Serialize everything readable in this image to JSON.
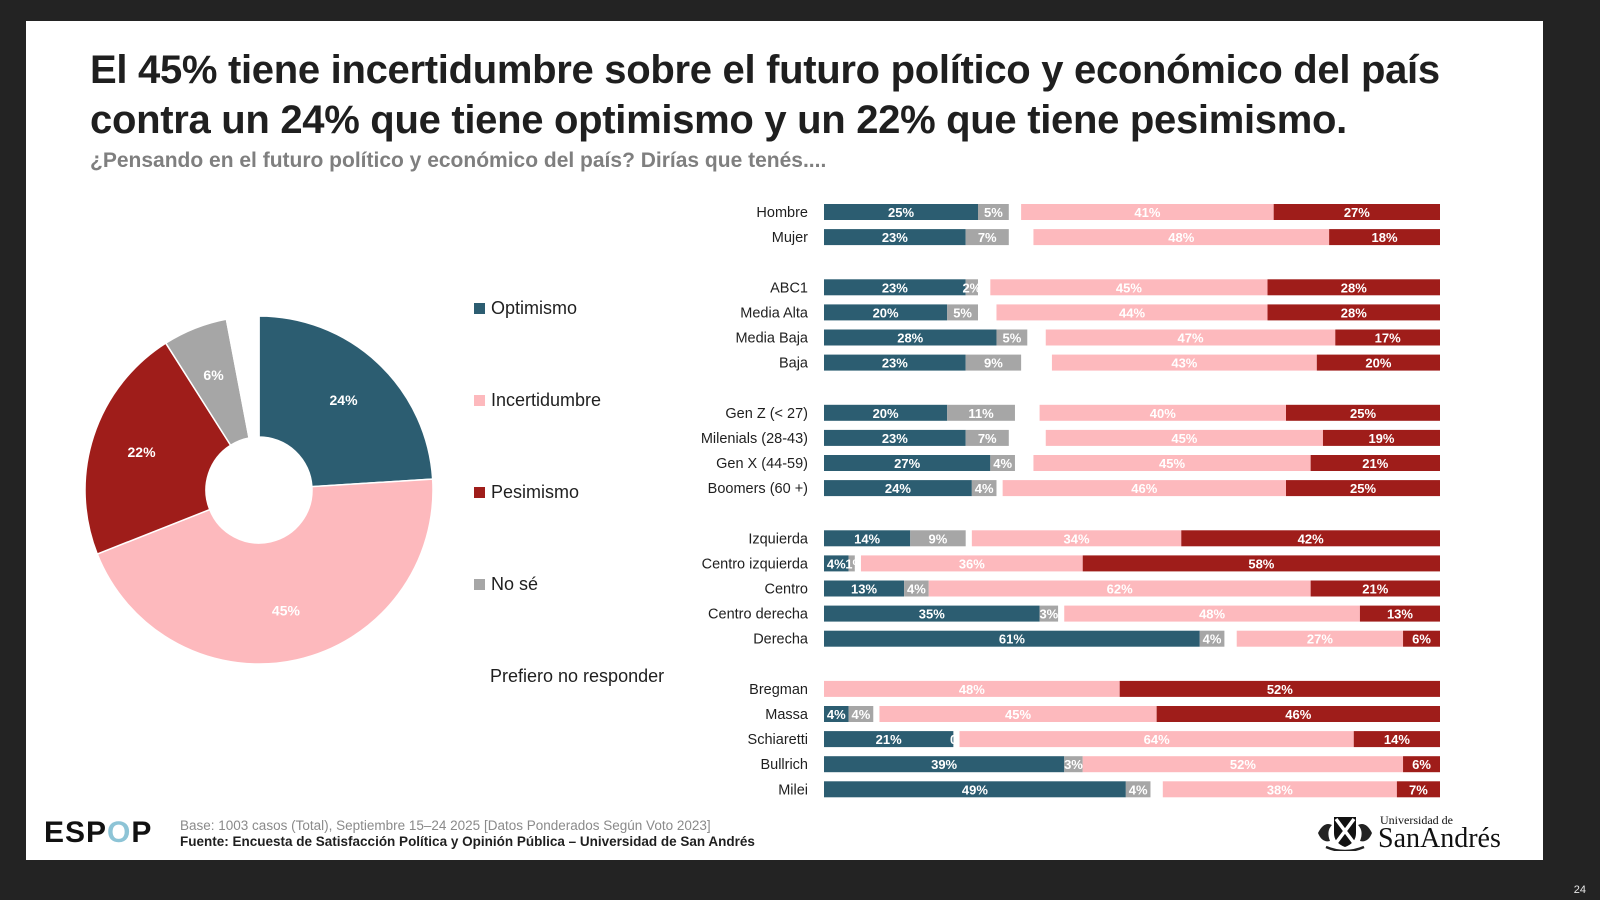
{
  "slide": {
    "title_line1": "El 45% tiene incertidumbre sobre el futuro político y económico del país",
    "title_line2": "contra un 24% que tiene optimismo y un 22% que tiene pesimismo.",
    "subtitle": "¿Pensando en el futuro político y económico del país? Dirías que tenés....",
    "page_number": "24"
  },
  "footer": {
    "logo_text_1": "ESP",
    "logo_text_o": "O",
    "logo_text_2": "P",
    "base": "Base: 1003 casos (Total), Septiembre 15–24 2025 [Datos Ponderados Según Voto 2023]",
    "fuente": "Fuente: Encuesta de Satisfacción Política y Opinión Pública – Universidad de San Andrés",
    "university_line1": "Universidad de",
    "university_line2": "SanAndrés"
  },
  "colors": {
    "optimismo": "#2c5d71",
    "incertidumbre": "#fdb9bd",
    "pesimismo": "#9f1d1a",
    "no_se": "#a6a6a6",
    "prefiero_no_responder": "#ffffff"
  },
  "chart_data": [
    {
      "type": "pie",
      "variant": "donut",
      "title": "",
      "legend_position": "right",
      "legend": [
        "Optimismo",
        "Incertidumbre",
        "Pesimismo",
        "No sé",
        "Prefiero no responder"
      ],
      "slices": [
        {
          "label": "Optimismo",
          "value": 24,
          "display": "24%"
        },
        {
          "label": "Incertidumbre",
          "value": 45,
          "display": "45%"
        },
        {
          "label": "Pesimismo",
          "value": 22,
          "display": "22%"
        },
        {
          "label": "No sé",
          "value": 6,
          "display": "6%"
        },
        {
          "label": "Prefiero no responder",
          "value": 3,
          "display": ""
        }
      ]
    },
    {
      "type": "bar",
      "orientation": "horizontal",
      "stacked": true,
      "series_order": [
        "Optimismo",
        "No sé",
        "Prefiero no responder",
        "Incertidumbre",
        "Pesimismo"
      ],
      "groups": [
        {
          "rows": [
            {
              "label": "Hombre",
              "optimismo": 25,
              "no_se": 5,
              "incertidumbre": 41,
              "pesimismo": 27
            },
            {
              "label": "Mujer",
              "optimismo": 23,
              "no_se": 7,
              "incertidumbre": 48,
              "pesimismo": 18
            }
          ]
        },
        {
          "rows": [
            {
              "label": "ABC1",
              "optimismo": 23,
              "no_se": 2,
              "incertidumbre": 45,
              "pesimismo": 28
            },
            {
              "label": "Media Alta",
              "optimismo": 20,
              "no_se": 5,
              "incertidumbre": 44,
              "pesimismo": 28
            },
            {
              "label": "Media Baja",
              "optimismo": 28,
              "no_se": 5,
              "incertidumbre": 47,
              "pesimismo": 17
            },
            {
              "label": "Baja",
              "optimismo": 23,
              "no_se": 9,
              "incertidumbre": 43,
              "pesimismo": 20
            }
          ]
        },
        {
          "rows": [
            {
              "label": "Gen Z (< 27)",
              "optimismo": 20,
              "no_se": 11,
              "incertidumbre": 40,
              "pesimismo": 25
            },
            {
              "label": "Milenials (28-43)",
              "optimismo": 23,
              "no_se": 7,
              "incertidumbre": 45,
              "pesimismo": 19
            },
            {
              "label": "Gen X (44-59)",
              "optimismo": 27,
              "no_se": 4,
              "incertidumbre": 45,
              "pesimismo": 21
            },
            {
              "label": "Boomers (60 +)",
              "optimismo": 24,
              "no_se": 4,
              "incertidumbre": 46,
              "pesimismo": 25
            }
          ]
        },
        {
          "rows": [
            {
              "label": "Izquierda",
              "optimismo": 14,
              "no_se": 9,
              "incertidumbre": 34,
              "pesimismo": 42
            },
            {
              "label": "Centro izquierda",
              "optimismo": 4,
              "no_se": 1,
              "incertidumbre": 36,
              "pesimismo": 58
            },
            {
              "label": "Centro",
              "optimismo": 13,
              "no_se": 4,
              "incertidumbre": 62,
              "pesimismo": 21
            },
            {
              "label": "Centro derecha",
              "optimismo": 35,
              "no_se": 3,
              "incertidumbre": 48,
              "pesimismo": 13
            },
            {
              "label": "Derecha",
              "optimismo": 61,
              "no_se": 4,
              "incertidumbre": 27,
              "pesimismo": 6
            }
          ]
        },
        {
          "rows": [
            {
              "label": "Bregman",
              "optimismo": 0,
              "no_se": 0,
              "incertidumbre": 48,
              "pesimismo": 52
            },
            {
              "label": "Massa",
              "optimismo": 4,
              "no_se": 4,
              "incertidumbre": 45,
              "pesimismo": 46
            },
            {
              "label": "Schiaretti",
              "optimismo": 21,
              "no_se": 0,
              "incertidumbre": 64,
              "pesimismo": 14
            },
            {
              "label": "Bullrich",
              "optimismo": 39,
              "no_se": 3,
              "incertidumbre": 52,
              "pesimismo": 6
            },
            {
              "label": "Milei",
              "optimismo": 49,
              "no_se": 4,
              "incertidumbre": 38,
              "pesimismo": 7
            }
          ]
        }
      ],
      "xlim": [
        0,
        100
      ],
      "value_suffix": "%"
    }
  ]
}
